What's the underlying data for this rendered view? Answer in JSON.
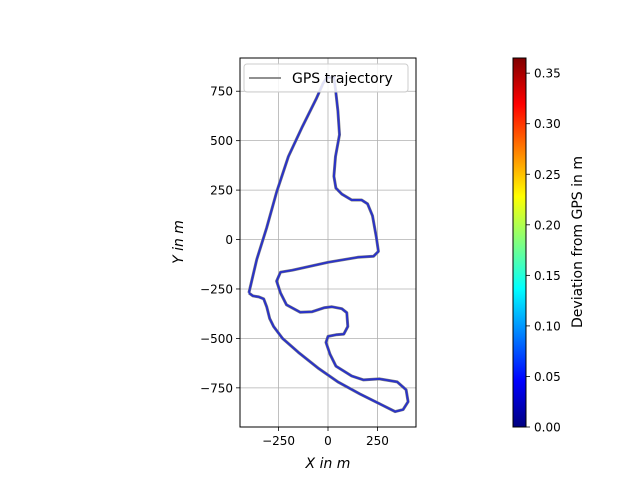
{
  "chart_data": {
    "type": "line",
    "title": "",
    "xlabel": "X in m",
    "ylabel": "Y in m",
    "xlim": [
      -445,
      445
    ],
    "ylim": [
      -948,
      918
    ],
    "xticks": [
      -250,
      0,
      250
    ],
    "yticks": [
      -750,
      -500,
      -250,
      0,
      250,
      500,
      750
    ],
    "xtick_labels": [
      "−250",
      "0",
      "250"
    ],
    "ytick_labels": [
      "−750",
      "−500",
      "−250",
      "0",
      "250",
      "500",
      "750"
    ],
    "grid": true,
    "legend": {
      "position": "upper-left",
      "entries": [
        "GPS trajectory"
      ]
    },
    "series": [
      {
        "name": "GPS trajectory",
        "color": "#2a33c8",
        "points": [
          [
            -400,
            -270
          ],
          [
            -380,
            -285
          ],
          [
            -350,
            -290
          ],
          [
            -325,
            -300
          ],
          [
            -310,
            -340
          ],
          [
            -295,
            -400
          ],
          [
            -275,
            -440
          ],
          [
            -230,
            -500
          ],
          [
            -150,
            -570
          ],
          [
            -50,
            -650
          ],
          [
            50,
            -720
          ],
          [
            160,
            -780
          ],
          [
            260,
            -830
          ],
          [
            340,
            -870
          ],
          [
            380,
            -860
          ],
          [
            405,
            -820
          ],
          [
            395,
            -760
          ],
          [
            350,
            -720
          ],
          [
            260,
            -705
          ],
          [
            180,
            -710
          ],
          [
            120,
            -690
          ],
          [
            40,
            -640
          ],
          [
            10,
            -580
          ],
          [
            -10,
            -520
          ],
          [
            0,
            -490
          ],
          [
            40,
            -482
          ],
          [
            80,
            -478
          ],
          [
            100,
            -440
          ],
          [
            95,
            -370
          ],
          [
            70,
            -350
          ],
          [
            20,
            -340
          ],
          [
            -20,
            -345
          ],
          [
            -80,
            -365
          ],
          [
            -140,
            -368
          ],
          [
            -210,
            -330
          ],
          [
            -240,
            -270
          ],
          [
            -260,
            -210
          ],
          [
            -240,
            -165
          ],
          [
            -180,
            -155
          ],
          [
            0,
            -115
          ],
          [
            150,
            -90
          ],
          [
            230,
            -85
          ],
          [
            255,
            -60
          ],
          [
            245,
            10
          ],
          [
            225,
            120
          ],
          [
            200,
            180
          ],
          [
            170,
            200
          ],
          [
            120,
            200
          ],
          [
            70,
            230
          ],
          [
            40,
            260
          ],
          [
            30,
            320
          ],
          [
            38,
            420
          ],
          [
            58,
            530
          ],
          [
            50,
            650
          ],
          [
            38,
            760
          ],
          [
            30,
            820
          ],
          [
            -5,
            820
          ],
          [
            -25,
            790
          ],
          [
            -60,
            710
          ],
          [
            -130,
            570
          ],
          [
            -200,
            420
          ],
          [
            -260,
            240
          ],
          [
            -310,
            60
          ],
          [
            -360,
            -100
          ],
          [
            -400,
            -270
          ]
        ]
      }
    ],
    "colorbar": {
      "label": "Deviation from GPS in m",
      "min": 0.0,
      "max": 0.365,
      "ticks": [
        0.0,
        0.05,
        0.1,
        0.15,
        0.2,
        0.25,
        0.3,
        0.35
      ],
      "tick_labels": [
        "0.00",
        "0.05",
        "0.10",
        "0.15",
        "0.20",
        "0.25",
        "0.30",
        "0.35"
      ],
      "colormap": "jet"
    }
  }
}
